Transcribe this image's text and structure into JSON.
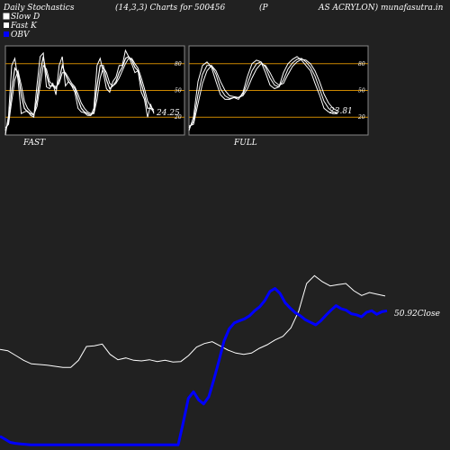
{
  "header": {
    "title": "Daily Stochastics",
    "params": "(14,3,3) Charts for 500456",
    "company_open": "(P",
    "company_rest": "AS ACRYLON) munafasutra.in"
  },
  "legend": {
    "items": [
      {
        "label": "Slow  D",
        "color": "#ffffff"
      },
      {
        "label": "Fast K",
        "color": "#ffffff"
      },
      {
        "label": "OBV",
        "color": "#0000ff"
      }
    ]
  },
  "colors": {
    "background": "#212121",
    "panel_bg": "#000000",
    "panel_border": "#888888",
    "level_line": "#cc8800",
    "stoch_line": "#ffffff",
    "obv_line": "#0000ff",
    "close_line": "#ffffff"
  },
  "chart_data": [
    {
      "type": "line",
      "name": "FAST",
      "caption": "FAST",
      "last_value_label": "24.25",
      "levels": [
        20,
        50,
        80
      ],
      "level_labels": [
        "20",
        "50",
        "80"
      ],
      "ylim": [
        0,
        100
      ],
      "series": [
        {
          "name": "Fast K",
          "values": [
            0,
            22,
            78,
            86,
            62,
            24,
            26,
            27,
            22,
            20,
            56,
            88,
            92,
            54,
            52,
            58,
            45,
            78,
            88,
            55,
            60,
            55,
            48,
            30,
            26,
            25,
            22,
            22,
            30,
            78,
            86,
            70,
            52,
            48,
            60,
            65,
            78,
            78,
            95,
            88,
            80,
            70,
            72,
            48,
            40,
            20,
            34,
            24
          ]
        },
        {
          "name": "Slow K",
          "values": [
            5,
            15,
            50,
            75,
            70,
            45,
            30,
            26,
            24,
            22,
            40,
            70,
            88,
            68,
            55,
            55,
            52,
            62,
            78,
            68,
            60,
            56,
            52,
            40,
            30,
            26,
            24,
            22,
            26,
            55,
            78,
            78,
            62,
            52,
            55,
            60,
            70,
            76,
            86,
            88,
            84,
            76,
            72,
            58,
            45,
            30,
            30,
            26
          ]
        },
        {
          "name": "Slow D",
          "values": [
            8,
            12,
            38,
            62,
            72,
            56,
            38,
            30,
            26,
            23,
            32,
            56,
            78,
            74,
            60,
            56,
            54,
            58,
            70,
            70,
            64,
            58,
            54,
            46,
            36,
            30,
            26,
            24,
            24,
            40,
            64,
            76,
            70,
            58,
            55,
            58,
            64,
            72,
            80,
            86,
            86,
            80,
            75,
            64,
            52,
            38,
            32,
            28
          ]
        }
      ]
    },
    {
      "type": "line",
      "name": "FULL",
      "caption": "FULL",
      "last_value_label": "23.81",
      "levels": [
        20,
        50,
        80
      ],
      "level_labels": [
        "20",
        "50",
        "80"
      ],
      "ylim": [
        0,
        100
      ],
      "series": [
        {
          "name": "Full K",
          "values": [
            5,
            20,
            60,
            78,
            82,
            76,
            60,
            45,
            40,
            40,
            42,
            40,
            48,
            66,
            80,
            84,
            82,
            70,
            56,
            52,
            54,
            70,
            80,
            85,
            88,
            84,
            78,
            72,
            58,
            45,
            30,
            26,
            24,
            24
          ]
        },
        {
          "name": "Full D",
          "values": [
            8,
            15,
            45,
            68,
            78,
            78,
            68,
            52,
            44,
            41,
            42,
            42,
            46,
            58,
            72,
            80,
            82,
            76,
            64,
            56,
            54,
            62,
            74,
            81,
            85,
            86,
            82,
            76,
            66,
            52,
            38,
            30,
            26,
            25
          ]
        },
        {
          "name": "Full D2",
          "values": [
            10,
            12,
            35,
            58,
            72,
            78,
            72,
            60,
            50,
            44,
            43,
            42,
            44,
            52,
            64,
            74,
            80,
            78,
            70,
            60,
            56,
            58,
            68,
            77,
            82,
            85,
            84,
            80,
            72,
            60,
            46,
            36,
            30,
            27
          ]
        }
      ]
    },
    {
      "type": "line",
      "name": "Price & OBV",
      "last_value_label": "50.92Close",
      "series": [
        {
          "name": "Close",
          "values": [
            42.0,
            41.8,
            41.0,
            40.2,
            39.6,
            39.5,
            39.4,
            39.2,
            39.0,
            39.0,
            40.2,
            42.5,
            42.6,
            42.9,
            41.2,
            40.3,
            40.6,
            40.2,
            40.1,
            40.3,
            40.0,
            40.2,
            39.9,
            40.0,
            41.0,
            42.4,
            43.0,
            43.3,
            42.6,
            41.9,
            41.4,
            41.2,
            41.4,
            42.2,
            42.8,
            43.6,
            44.2,
            45.6,
            48.4,
            53.0,
            54.3,
            53.3,
            52.6,
            52.8,
            53.0,
            51.8,
            51.0,
            51.5,
            51.2,
            50.92
          ]
        },
        {
          "name": "OBV",
          "values": [
            2.0,
            1.4,
            0.8,
            0.6,
            0.5,
            0.4,
            0.3,
            0.3,
            0.3,
            0.3,
            0.3,
            0.3,
            0.3,
            0.3,
            0.3,
            0.3,
            0.3,
            0.3,
            0.3,
            0.3,
            0.3,
            0.3,
            0.3,
            0.3,
            0.3,
            0.3,
            0.3,
            0.3,
            0.3,
            0.3,
            0.3,
            0.3,
            0.3,
            0.3,
            0.3,
            0.3,
            4.8,
            9.5,
            10.8,
            9.2,
            8.4,
            9.8,
            13.2,
            16.9,
            20.8,
            23.2,
            24.4,
            24.8,
            25.2,
            25.8,
            26.8,
            27.6,
            28.8,
            30.6,
            31.2,
            30.2,
            28.4,
            27.3,
            26.4,
            25.8,
            25.0,
            24.5,
            24.0,
            24.8,
            25.9,
            26.9,
            27.8,
            27.2,
            26.9,
            26.2,
            26.0,
            25.6,
            26.5,
            26.8,
            26.1,
            26.6,
            26.8
          ]
        }
      ]
    }
  ]
}
